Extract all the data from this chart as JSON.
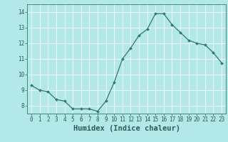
{
  "x": [
    0,
    1,
    2,
    3,
    4,
    5,
    6,
    7,
    8,
    9,
    10,
    11,
    12,
    13,
    14,
    15,
    16,
    17,
    18,
    19,
    20,
    21,
    22,
    23
  ],
  "y": [
    9.3,
    9.0,
    8.9,
    8.4,
    8.3,
    7.8,
    7.8,
    7.8,
    7.65,
    8.3,
    9.5,
    11.0,
    11.7,
    12.5,
    12.9,
    13.9,
    13.9,
    13.2,
    12.7,
    12.2,
    12.0,
    11.9,
    11.4,
    10.75
  ],
  "xlim": [
    -0.5,
    23.5
  ],
  "ylim": [
    7.5,
    14.5
  ],
  "yticks": [
    8,
    9,
    10,
    11,
    12,
    13,
    14
  ],
  "xticks": [
    0,
    1,
    2,
    3,
    4,
    5,
    6,
    7,
    8,
    9,
    10,
    11,
    12,
    13,
    14,
    15,
    16,
    17,
    18,
    19,
    20,
    21,
    22,
    23
  ],
  "xlabel": "Humidex (Indice chaleur)",
  "line_color": "#2d7a6a",
  "marker": "D",
  "marker_size": 2.0,
  "background_color": "#b2e8e8",
  "grid_color": "#d0f0f0",
  "tick_label_fontsize": 5.5,
  "xlabel_fontsize": 7.5,
  "title": ""
}
